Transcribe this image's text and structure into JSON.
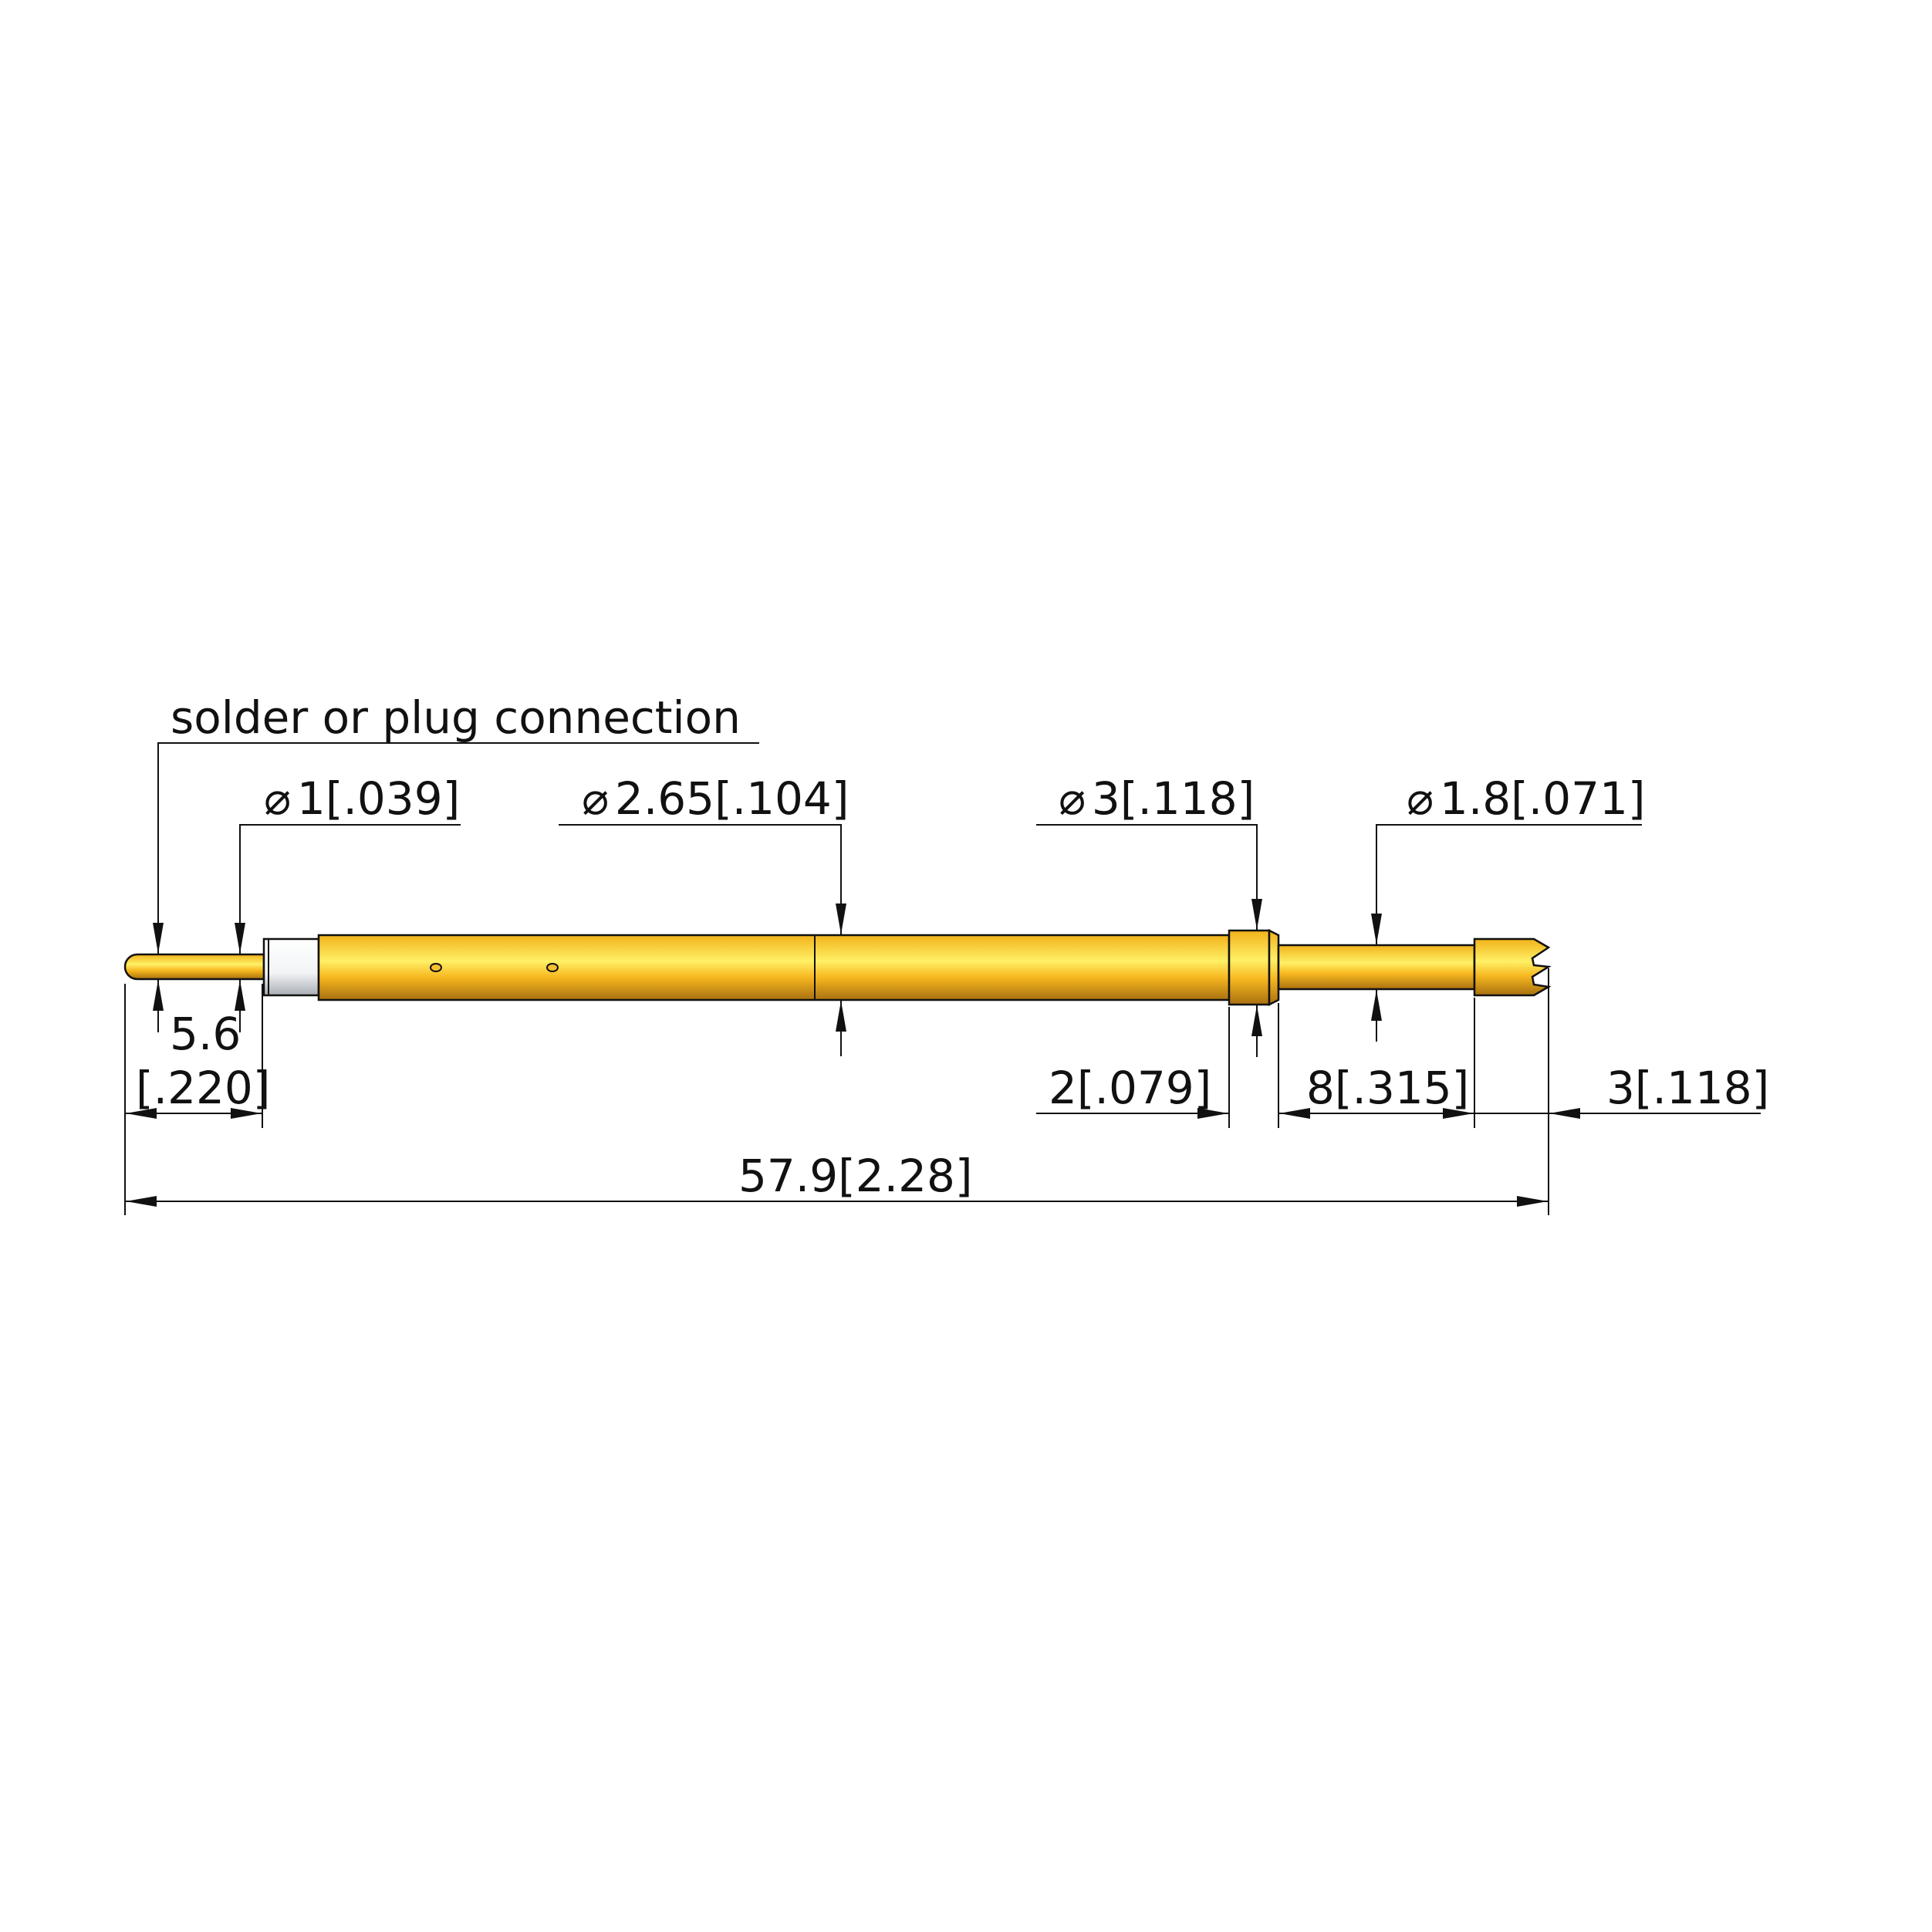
{
  "drawing": {
    "note": "solder or plug connection",
    "diameter_symbol": "⌀",
    "dimensions": {
      "tail_diameter": "1[.039]",
      "barrel_diameter": "2.65[.104]",
      "collar_diameter": "3[.118]",
      "plunger_diameter": "1.8[.071]",
      "tail_length_mm": "5.6",
      "tail_length_in": "[.220]",
      "collar_length": "2[.079]",
      "plunger_length": "8[.315]",
      "tip_length": "3[.118]",
      "overall_length": "57.9[2.28]"
    },
    "colors": {
      "gold_light": "#fff066",
      "gold_mid": "#fbbd1e",
      "gold_dark": "#a87010",
      "insulator": "#f2f4f6",
      "line": "#111111"
    }
  }
}
